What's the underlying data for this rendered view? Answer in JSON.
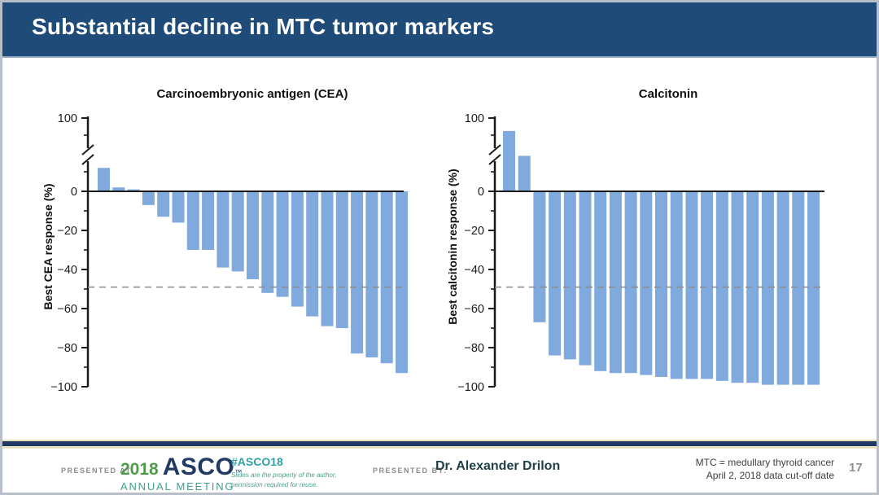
{
  "slide": {
    "title": "Substantial decline in MTC tumor markers",
    "colors": {
      "title_bar": "#1e4b78",
      "bar_fill": "#80a9dd",
      "axis": "#1a1a1a",
      "dashed_line": "#8c8c8c",
      "tick_text": "#1a1a1a"
    }
  },
  "chart_data": [
    {
      "type": "bar",
      "title": "Carcinoembryonic antigen (CEA)",
      "ylabel": "Best CEA response (%)",
      "yticks": [
        100,
        0,
        -20,
        -40,
        -60,
        -80,
        -100
      ],
      "ylim": [
        -100,
        100
      ],
      "axis_break": true,
      "threshold_line": -49,
      "grid": false,
      "legend": false,
      "values": [
        12,
        2,
        1,
        -7,
        -13,
        -16,
        -30,
        -30,
        -39,
        -41,
        -45,
        -52,
        -54,
        -59,
        -64,
        -69,
        -70,
        -83,
        -85,
        -88,
        -93
      ]
    },
    {
      "type": "bar",
      "title": "Calcitonin",
      "ylabel": "Best calcitonin response (%)",
      "yticks": [
        100,
        0,
        -20,
        -40,
        -60,
        -80,
        -100
      ],
      "ylim": [
        -100,
        100
      ],
      "axis_break": true,
      "threshold_line": -49,
      "grid": false,
      "legend": false,
      "values": [
        75,
        27,
        -67,
        -84,
        -86,
        -89,
        -92,
        -93,
        -93,
        -94,
        -95,
        -96,
        -96,
        -96,
        -97,
        -98,
        -98,
        -99,
        -99,
        -99,
        -99
      ]
    }
  ],
  "footer": {
    "presented_at_label": "PRESENTED AT:",
    "logo": {
      "year": "2018",
      "org": "ASCO",
      "trademark": "™",
      "sub": "ANNUAL MEETING"
    },
    "hashtag": "#ASCO18",
    "permission_line1": "Slides are the property of the author,",
    "permission_line2": "permission required for reuse.",
    "presented_by_label": "PRESENTED BY:",
    "presenter": "Dr. Alexander Drilon",
    "note_line1": "MTC = medullary thyroid cancer",
    "note_line2": "April 2, 2018 data cut-off date",
    "page_number": "17"
  }
}
